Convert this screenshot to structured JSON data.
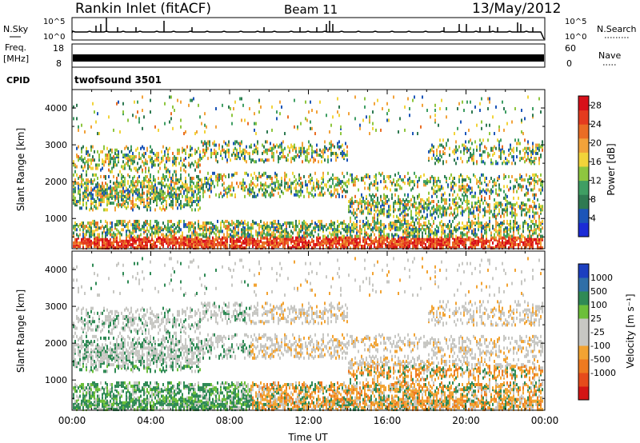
{
  "header": {
    "station": "Rankin Inlet (fitACF)",
    "beam": "Beam 11",
    "date": "13/May/2012"
  },
  "nsky_panel": {
    "left_label": "N.Sky",
    "right_label": "N.Search",
    "left_ticks": [
      "10^5",
      "10^0"
    ],
    "right_ticks": [
      "10^5",
      "10^0"
    ]
  },
  "freq_panel": {
    "left_label_line1": "Freq.",
    "left_label_line2": "[MHz]",
    "right_label": "Nave",
    "left_ticks": [
      "18",
      "8"
    ],
    "right_ticks": [
      "60",
      "0"
    ]
  },
  "cpid_panel": {
    "label": "CPID",
    "value": "twofsound 3501"
  },
  "colors": {
    "power_scale": [
      "#1c2bd6",
      "#1c55b8",
      "#2f7a52",
      "#3f9e63",
      "#8ec63f",
      "#f2d43a",
      "#f2a23a",
      "#ea6d25",
      "#e43b1f",
      "#d8101a"
    ],
    "velocity_scale": [
      "#1c3fc0",
      "#2f6fa8",
      "#2f8a55",
      "#6cbf3a",
      "#c7c7c3",
      "#c7c7c3",
      "#f2a332",
      "#ee7a20",
      "#e64b1c",
      "#d41515"
    ]
  },
  "chart_data": [
    {
      "type": "heatmap",
      "name": "power",
      "ylabel": "Slant Range [km]",
      "yticks": [
        "1000",
        "2000",
        "3000",
        "4000"
      ],
      "ylim": [
        180,
        4500
      ],
      "xlim": [
        0,
        24
      ],
      "colorbar_label": "Power [dB]",
      "colorbar_ticks": [
        "4",
        "8",
        "12",
        "16",
        "20",
        "24",
        "28"
      ],
      "colorbar_range": [
        0,
        30
      ]
    },
    {
      "type": "heatmap",
      "name": "velocity",
      "ylabel": "Slant Range [km]",
      "yticks": [
        "1000",
        "2000",
        "3000",
        "4000"
      ],
      "ylim": [
        180,
        4500
      ],
      "xlim": [
        0,
        24
      ],
      "colorbar_label": "Velocity [m s⁻¹]",
      "colorbar_ticks": [
        "1000",
        "500",
        "100",
        "25",
        "-25",
        "-100",
        "-500",
        "-1000"
      ],
      "xlabel": "Time UT",
      "xticks": [
        "00:00",
        "04:00",
        "08:00",
        "12:00",
        "16:00",
        "20:00",
        "00:00"
      ]
    }
  ]
}
